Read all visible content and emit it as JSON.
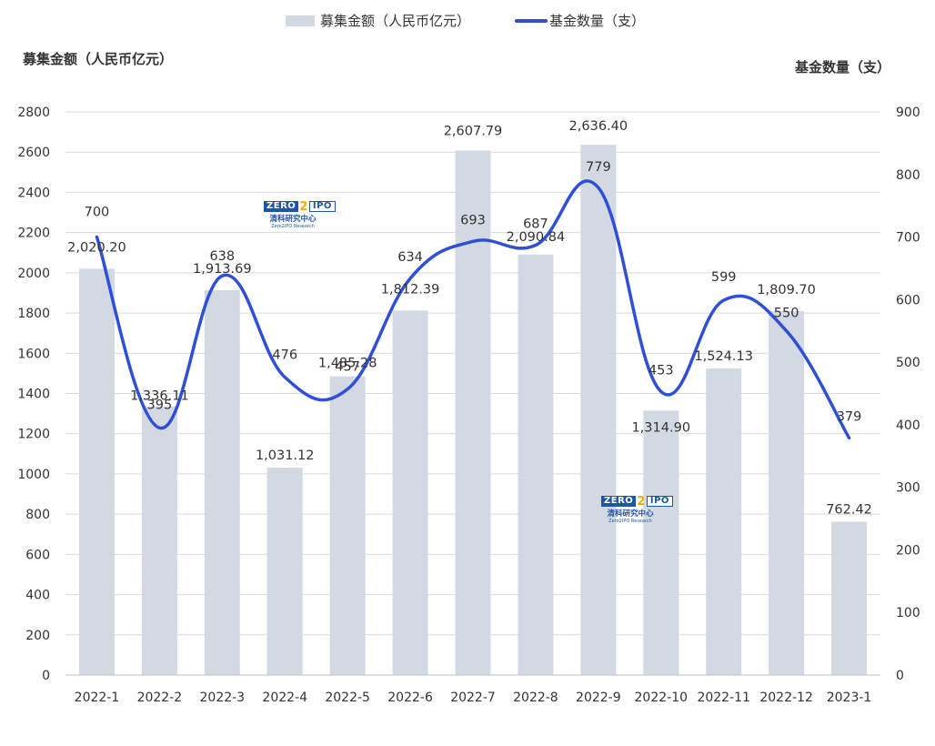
{
  "legend": {
    "bar_label": "募集金额（人民币亿元）",
    "line_label": "基金数量（支）"
  },
  "axes": {
    "left_title": "募集金额（人民币亿元）",
    "right_title": "基金数量（支）"
  },
  "watermark": {
    "logo_left": "ZERO",
    "logo_mid": "2",
    "logo_right": "IPO",
    "cn_text": "清科研究中心",
    "en_text": "Zero2IPO Research"
  },
  "colors": {
    "bar": "#d3d9e3",
    "line": "#2f4fd6",
    "grid": "#d9d9d9",
    "text": "#333333"
  },
  "chart_data": {
    "type": "bar",
    "categories": [
      "2022-1",
      "2022-2",
      "2022-3",
      "2022-4",
      "2022-5",
      "2022-6",
      "2022-7",
      "2022-8",
      "2022-9",
      "2022-10",
      "2022-11",
      "2022-12",
      "2023-1"
    ],
    "series": [
      {
        "name": "募集金额（人民币亿元）",
        "type": "bar",
        "axis": "left",
        "values": [
          2020.2,
          1336.11,
          1913.69,
          1031.12,
          1485.28,
          1812.39,
          2607.79,
          2090.84,
          2636.4,
          1314.9,
          1524.13,
          1809.7,
          762.42
        ],
        "labels": [
          "2,020.20",
          "1,336.11",
          "1,913.69",
          "1,031.12",
          "1,485.28",
          "1,812.39",
          "2,607.79",
          "2,090.84",
          "2,636.40",
          "1,314.90",
          "1,524.13",
          "1,809.70",
          "762.42"
        ]
      },
      {
        "name": "基金数量（支）",
        "type": "line",
        "axis": "right",
        "smooth": true,
        "values": [
          700,
          395,
          638,
          476,
          457,
          634,
          693,
          687,
          779,
          453,
          599,
          550,
          379
        ],
        "labels": [
          "700",
          "395",
          "638",
          "476",
          "457",
          "634",
          "693",
          "687",
          "779",
          "453",
          "599",
          "550",
          "379"
        ]
      }
    ],
    "y_left": {
      "min": 0,
      "max": 2800,
      "step": 200,
      "ticks": [
        "0",
        "200",
        "400",
        "600",
        "800",
        "1000",
        "1200",
        "1400",
        "1600",
        "1800",
        "2000",
        "2200",
        "2400",
        "2600",
        "2800"
      ]
    },
    "y_right": {
      "min": 0,
      "max": 900,
      "step": 100,
      "ticks": [
        "0",
        "100",
        "200",
        "300",
        "400",
        "500",
        "600",
        "700",
        "800",
        "900"
      ]
    },
    "grid": true,
    "legend_position": "top-center"
  }
}
